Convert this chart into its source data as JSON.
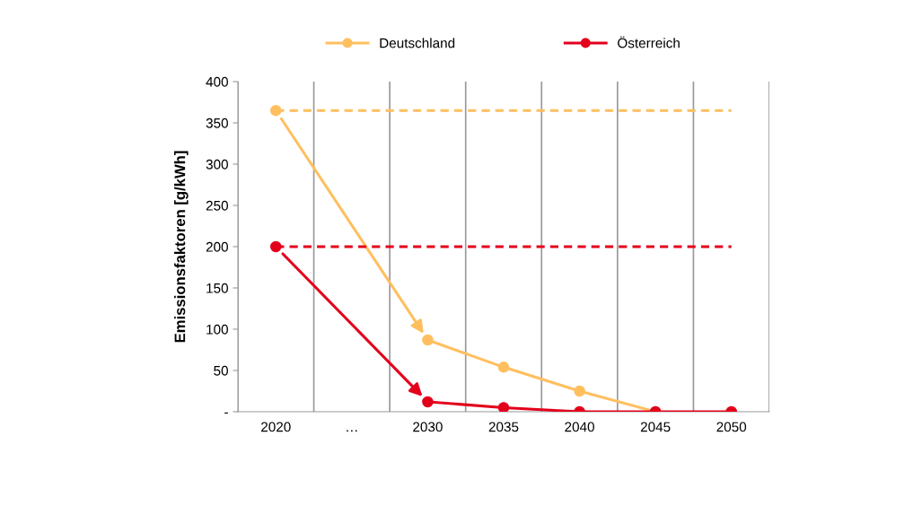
{
  "chart_data": {
    "type": "line",
    "ylabel": "Emissionsfaktoren [g/kWh]",
    "categories": [
      "2020",
      "…",
      "2030",
      "2035",
      "2040",
      "2045",
      "2050"
    ],
    "series": [
      {
        "name": "Deutschland",
        "color": "#ffbf5f",
        "values": [
          365,
          null,
          87,
          54,
          25,
          0,
          null
        ],
        "marker": "circle",
        "line_style": "solid"
      },
      {
        "name": "Österreich",
        "color": "#e3001b",
        "values": [
          200,
          null,
          12,
          5,
          0,
          0,
          0
        ],
        "marker": "circle",
        "line_style": "solid"
      },
      {
        "color": "#ffbf5f",
        "values": [
          365,
          365,
          365,
          365,
          365,
          365,
          365
        ],
        "marker": "none",
        "line_style": "dashed"
      },
      {
        "color": "#e3001b",
        "values": [
          200,
          200,
          200,
          200,
          200,
          200,
          200
        ],
        "marker": "none",
        "line_style": "dashed"
      }
    ],
    "ylim": [
      0,
      400
    ],
    "yticks": [
      {
        "value": 0,
        "label": "-"
      },
      50,
      100,
      150,
      200,
      250,
      300,
      350,
      400
    ],
    "grid": "x",
    "legend": "top"
  }
}
